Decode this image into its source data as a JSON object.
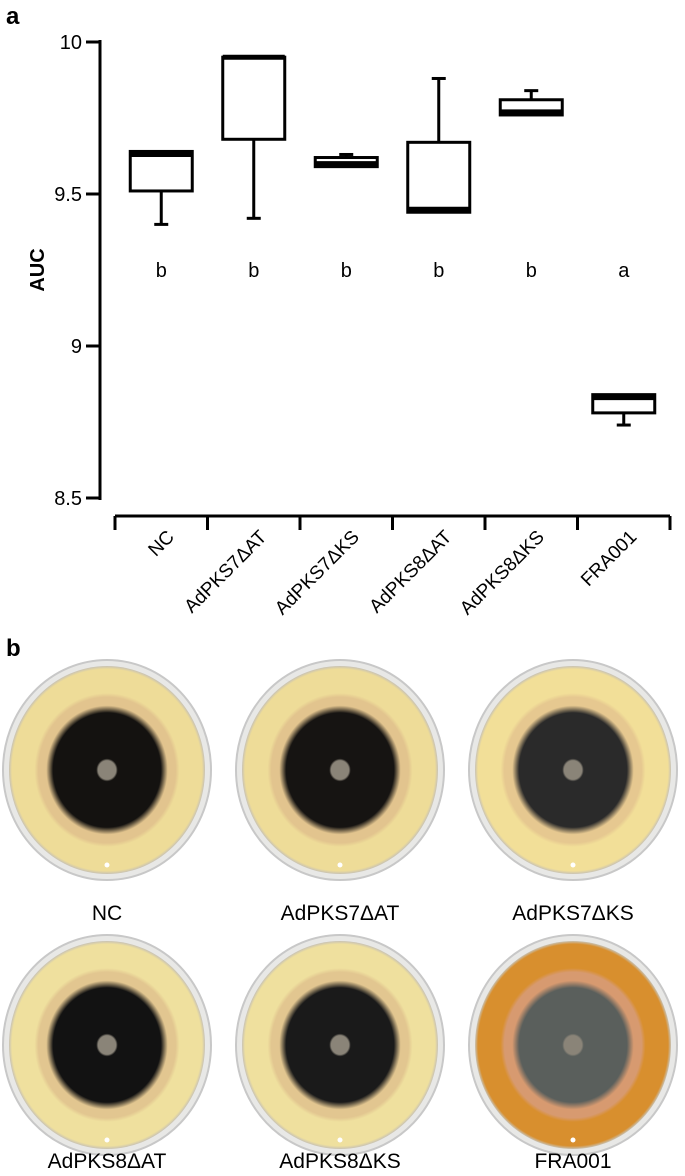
{
  "panel_a_label": "a",
  "panel_b_label": "b",
  "chart_data": {
    "type": "box",
    "ylabel": "AUC",
    "ylim": [
      8.5,
      10
    ],
    "yticks": [
      "8.5",
      "9",
      "9.5",
      "10"
    ],
    "grid": false,
    "categories": [
      "NC",
      "AdPKS7ΔAT",
      "AdPKS7ΔKS",
      "AdPKS8ΔAT",
      "AdPKS8ΔKS",
      "FRA001"
    ],
    "boxes": [
      {
        "min": 9.4,
        "q1": 9.51,
        "median": 9.63,
        "q3": 9.64,
        "max": 9.64
      },
      {
        "min": 9.42,
        "q1": 9.68,
        "median": 9.95,
        "q3": 9.95,
        "max": 9.95
      },
      {
        "min": 9.59,
        "q1": 9.59,
        "median": 9.6,
        "q3": 9.62,
        "max": 9.63
      },
      {
        "min": 9.44,
        "q1": 9.44,
        "median": 9.45,
        "q3": 9.67,
        "max": 9.88
      },
      {
        "min": 9.76,
        "q1": 9.76,
        "median": 9.77,
        "q3": 9.81,
        "max": 9.84
      },
      {
        "min": 8.74,
        "q1": 8.78,
        "median": 8.83,
        "q3": 8.84,
        "max": 8.84
      }
    ],
    "significance_letters": [
      "b",
      "b",
      "b",
      "b",
      "b",
      "a"
    ]
  },
  "plates": [
    {
      "label": "NC",
      "agar": "#eedc98",
      "halo": "#e2c48e",
      "colony": "#141210"
    },
    {
      "label": "AdPKS7ΔAT",
      "agar": "#eedc98",
      "halo": "#e2c48e",
      "colony": "#161412"
    },
    {
      "label": "AdPKS7ΔKS",
      "agar": "#f2df98",
      "halo": "#e6c890",
      "colony": "#2a2a2a"
    },
    {
      "label": "AdPKS8ΔAT",
      "agar": "#efe09e",
      "halo": "#e2c690",
      "colony": "#121212"
    },
    {
      "label": "AdPKS8ΔKS",
      "agar": "#efe09e",
      "halo": "#e2c690",
      "colony": "#1a1a1a"
    },
    {
      "label": "FRA001",
      "agar": "#d88f2e",
      "halo": "#d79a70",
      "colony": "#5a5f5c"
    }
  ]
}
